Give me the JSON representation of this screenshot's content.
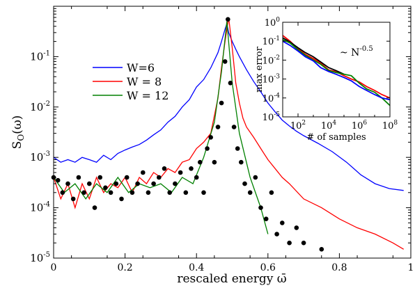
{
  "chart_data": [
    {
      "type": "line",
      "xlabel": "rescaled energy ω̄",
      "ylabel": "S̄_O(ω̄)",
      "ylabel_main": "S",
      "ylabel_sub": "O",
      "ylabel_arg": "(ω)",
      "xlim": [
        0,
        1
      ],
      "ylim": [
        1e-05,
        1
      ],
      "yscale": "log",
      "x_ticks": [
        0,
        0.2,
        0.4,
        0.6,
        0.8,
        1
      ],
      "x_tick_labels": [
        "0",
        "0.2",
        "0.4",
        "0.6",
        "0.8",
        "1"
      ],
      "y_ticks": [
        1e-05,
        0.0001,
        0.001,
        0.01,
        0.1
      ],
      "y_tick_labels": [
        {
          "base": "10",
          "exp": "-5"
        },
        {
          "base": "10",
          "exp": "-4"
        },
        {
          "base": "10",
          "exp": "-3"
        },
        {
          "base": "10",
          "exp": "-2"
        },
        {
          "base": "10",
          "exp": "-1"
        }
      ],
      "legend_position": "center-left",
      "series": [
        {
          "name": "W=6",
          "color": "#0000ff",
          "x": [
            0,
            0.02,
            0.04,
            0.06,
            0.08,
            0.1,
            0.12,
            0.14,
            0.16,
            0.18,
            0.2,
            0.22,
            0.24,
            0.26,
            0.28,
            0.3,
            0.32,
            0.34,
            0.36,
            0.38,
            0.4,
            0.42,
            0.44,
            0.46,
            0.47,
            0.48,
            0.485,
            0.49,
            0.5,
            0.51,
            0.52,
            0.54,
            0.56,
            0.58,
            0.6,
            0.62,
            0.64,
            0.66,
            0.68,
            0.7,
            0.74,
            0.78,
            0.82,
            0.86,
            0.9,
            0.94,
            0.98
          ],
          "y": [
            0.001,
            0.0008,
            0.0009,
            0.0008,
            0.001,
            0.0009,
            0.0008,
            0.0011,
            0.0009,
            0.0012,
            0.0014,
            0.0016,
            0.0018,
            0.0022,
            0.0028,
            0.0035,
            0.005,
            0.0065,
            0.01,
            0.014,
            0.025,
            0.035,
            0.06,
            0.12,
            0.2,
            0.35,
            0.45,
            0.3,
            0.2,
            0.14,
            0.1,
            0.055,
            0.032,
            0.02,
            0.012,
            0.008,
            0.0055,
            0.0042,
            0.0033,
            0.0027,
            0.0019,
            0.0013,
            0.0008,
            0.00045,
            0.0003,
            0.00024,
            0.00022
          ]
        },
        {
          "name": "W = 8",
          "color": "#ff0000",
          "x": [
            0,
            0.02,
            0.04,
            0.06,
            0.08,
            0.1,
            0.12,
            0.14,
            0.16,
            0.18,
            0.2,
            0.22,
            0.24,
            0.26,
            0.28,
            0.3,
            0.32,
            0.34,
            0.36,
            0.38,
            0.4,
            0.42,
            0.44,
            0.46,
            0.47,
            0.48,
            0.49,
            0.5,
            0.51,
            0.52,
            0.53,
            0.54,
            0.56,
            0.58,
            0.6,
            0.62,
            0.64,
            0.66,
            0.7,
            0.75,
            0.8,
            0.85,
            0.9,
            0.95,
            0.98
          ],
          "y": [
            0.0004,
            0.00015,
            0.0003,
            0.0001,
            0.0003,
            0.00015,
            0.0004,
            0.0002,
            0.0003,
            0.00025,
            0.0004,
            0.0002,
            0.0004,
            0.0003,
            0.0005,
            0.0004,
            0.0006,
            0.0005,
            0.0008,
            0.0009,
            0.0015,
            0.002,
            0.003,
            0.015,
            0.06,
            0.2,
            0.6,
            0.15,
            0.03,
            0.012,
            0.006,
            0.004,
            0.0025,
            0.0015,
            0.0009,
            0.0006,
            0.0004,
            0.0003,
            0.00015,
            0.0001,
            6e-05,
            4e-05,
            3e-05,
            2e-05,
            1.5e-05
          ]
        },
        {
          "name": "W = 12",
          "color": "#008000",
          "x": [
            0,
            0.03,
            0.06,
            0.09,
            0.12,
            0.15,
            0.18,
            0.21,
            0.24,
            0.27,
            0.3,
            0.33,
            0.36,
            0.39,
            0.42,
            0.45,
            0.47,
            0.485,
            0.5,
            0.52,
            0.55,
            0.58,
            0.6
          ],
          "y": [
            0.0004,
            0.0002,
            0.0003,
            0.00015,
            0.0003,
            0.0002,
            0.0004,
            0.0002,
            0.0003,
            0.00025,
            0.0003,
            0.0002,
            0.0004,
            0.0003,
            0.001,
            0.005,
            0.05,
            0.5,
            0.03,
            0.003,
            0.0004,
            0.0001,
            3e-05
          ]
        }
      ],
      "markers": {
        "color": "#000000",
        "x": [
          0,
          0.012,
          0.025,
          0.04,
          0.055,
          0.07,
          0.085,
          0.1,
          0.115,
          0.13,
          0.145,
          0.16,
          0.175,
          0.19,
          0.205,
          0.22,
          0.235,
          0.25,
          0.265,
          0.28,
          0.295,
          0.31,
          0.325,
          0.34,
          0.355,
          0.37,
          0.385,
          0.4,
          0.41,
          0.42,
          0.43,
          0.44,
          0.45,
          0.46,
          0.47,
          0.48,
          0.488,
          0.495,
          0.505,
          0.515,
          0.525,
          0.535,
          0.55,
          0.565,
          0.58,
          0.595,
          0.61,
          0.625,
          0.64,
          0.66,
          0.68,
          0.7,
          0.75
        ],
        "y": [
          0.0004,
          0.00035,
          0.0002,
          0.0003,
          0.00015,
          0.0004,
          0.0002,
          0.0003,
          0.0001,
          0.0004,
          0.00025,
          0.0002,
          0.0003,
          0.00015,
          0.0004,
          0.0002,
          0.0003,
          0.0005,
          0.0002,
          0.0003,
          0.0004,
          0.0006,
          0.0002,
          0.0003,
          0.0005,
          0.0002,
          0.0006,
          0.0004,
          0.0008,
          0.0002,
          0.0015,
          0.0025,
          0.0008,
          0.004,
          0.012,
          0.08,
          0.55,
          0.03,
          0.004,
          0.0015,
          0.0008,
          0.0003,
          0.0002,
          0.0004,
          0.0001,
          6e-05,
          0.0002,
          3e-05,
          5e-05,
          2e-05,
          4e-05,
          2e-05,
          1.5e-05
        ]
      }
    },
    {
      "type": "line",
      "xlabel": "# of samples",
      "ylabel": "max error",
      "xscale": "log",
      "yscale": "log",
      "xlim": [
        10,
        100000000
      ],
      "ylim": [
        1e-05,
        1
      ],
      "x_ticks": [
        100,
        10000,
        1000000,
        100000000
      ],
      "x_tick_labels": [
        {
          "base": "10",
          "exp": "2"
        },
        {
          "base": "10",
          "exp": "4"
        },
        {
          "base": "10",
          "exp": "6"
        },
        {
          "base": "10",
          "exp": "8"
        }
      ],
      "y_ticks": [
        1e-05,
        0.0001,
        0.001,
        0.01,
        0.1,
        1
      ],
      "y_tick_labels": [
        {
          "base": "10",
          "exp": "-5"
        },
        {
          "base": "10",
          "exp": "-4"
        },
        {
          "base": "10",
          "exp": "-3"
        },
        {
          "base": "10",
          "exp": "-2"
        },
        {
          "base": "10",
          "exp": "-1"
        },
        {
          "base": "10",
          "exp": "0"
        }
      ],
      "annotation": {
        "text": "~ N",
        "exp": "-0.5"
      },
      "series": [
        {
          "color": "#ff0000",
          "x": [
            10,
            30,
            100,
            300,
            1000,
            3000,
            10000,
            30000,
            100000,
            300000,
            1000000,
            3000000,
            10000000,
            30000000,
            100000000
          ],
          "y": [
            0.2,
            0.1,
            0.04,
            0.02,
            0.012,
            0.007,
            0.003,
            0.0025,
            0.0015,
            0.001,
            0.0007,
            0.0004,
            0.00025,
            0.00015,
            0.0001
          ]
        },
        {
          "color": "#000000",
          "x": [
            10,
            30,
            100,
            300,
            1000,
            3000,
            10000,
            30000,
            100000
          ],
          "y": [
            0.15,
            0.09,
            0.045,
            0.025,
            0.015,
            0.008,
            0.004,
            0.0028,
            0.0018
          ]
        },
        {
          "color": "#008000",
          "x": [
            10,
            30,
            100,
            300,
            1000,
            3000,
            10000,
            30000,
            100000,
            300000,
            1000000,
            3000000,
            10000000,
            30000000,
            100000000
          ],
          "y": [
            0.12,
            0.08,
            0.035,
            0.018,
            0.01,
            0.006,
            0.0028,
            0.0022,
            0.0018,
            0.0015,
            0.0006,
            0.0003,
            0.0002,
            0.0001,
            4e-05
          ]
        },
        {
          "color": "#0000ff",
          "x": [
            10,
            30,
            100,
            300,
            1000,
            3000,
            10000,
            30000,
            100000,
            300000,
            1000000,
            3000000,
            10000000,
            30000000,
            100000000
          ],
          "y": [
            0.1,
            0.06,
            0.03,
            0.015,
            0.009,
            0.004,
            0.0025,
            0.0018,
            0.0012,
            0.0008,
            0.0004,
            0.00025,
            0.00015,
            0.0001,
            8e-05
          ]
        }
      ]
    }
  ]
}
